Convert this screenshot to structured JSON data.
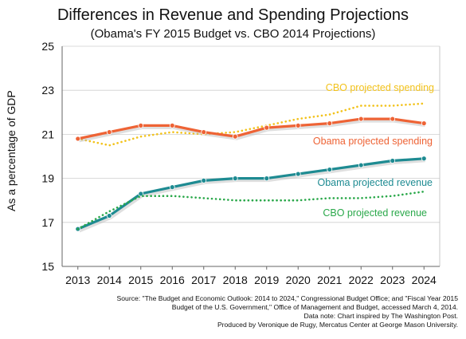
{
  "chart_data": {
    "type": "line",
    "title": "Differences in Revenue and Spending Projections",
    "subtitle": "(Obama's FY 2015 Budget vs. CBO 2014 Projections)",
    "xlabel": "",
    "ylabel": "As a percentage  of GDP",
    "x": [
      "2013",
      "2014",
      "2015",
      "2016",
      "2017",
      "2018",
      "2019",
      "2020",
      "2021",
      "2022",
      "2023",
      "2024"
    ],
    "ylim": [
      15,
      25
    ],
    "yticks": [
      "15",
      "17",
      "19",
      "21",
      "23",
      "25"
    ],
    "grid": true,
    "series": [
      {
        "name": "CBO projected spending",
        "style": "dotted",
        "color": "#f2c21b",
        "values": [
          20.8,
          20.5,
          20.9,
          21.1,
          21.0,
          21.1,
          21.4,
          21.7,
          21.9,
          22.3,
          22.3,
          22.4
        ]
      },
      {
        "name": "Obama projected spending",
        "style": "solid",
        "color": "#ee6335",
        "values": [
          20.8,
          21.1,
          21.4,
          21.4,
          21.1,
          20.9,
          21.3,
          21.4,
          21.5,
          21.7,
          21.7,
          21.5
        ]
      },
      {
        "name": "Obama projected revenue",
        "style": "solid",
        "color": "#1e8b92",
        "values": [
          16.7,
          17.3,
          18.3,
          18.6,
          18.9,
          19.0,
          19.0,
          19.2,
          19.4,
          19.6,
          19.8,
          19.9
        ]
      },
      {
        "name": "CBO projected revenue",
        "style": "dotted",
        "color": "#2aa84a",
        "values": [
          16.7,
          17.5,
          18.2,
          18.2,
          18.1,
          18.0,
          18.0,
          18.0,
          18.1,
          18.1,
          18.2,
          18.4
        ]
      }
    ]
  },
  "source_lines": [
    "Source: \"The Budget and Economic Outlook: 2014 to 2024,\" Congressional Budget Office; and \"Fiscal Year 2015",
    "Budget of the U.S. Government,\" Office of Management and Budget, accessed March 4, 2014.",
    "Data note: Chart inspired by The Washington Post.",
    "Produced by Veronique de Rugy, Mercatus Center at George Mason University."
  ]
}
